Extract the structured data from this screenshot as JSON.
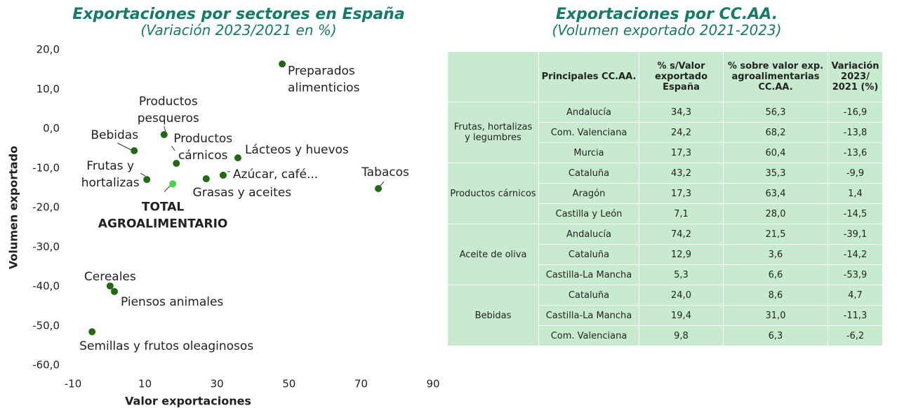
{
  "chart_data": {
    "type": "scatter",
    "title": "Exportaciones por sectores en España",
    "subtitle": "(Variación 2023/2021 en %)",
    "x_label": "Valor exportaciones",
    "y_label": "Volumen exportado",
    "labels": [
      [
        "Preparados",
        "alimenticios"
      ],
      [
        "Productos",
        "pesqueros"
      ],
      [
        "Bebidas"
      ],
      [
        "Productos",
        "cárnicos"
      ],
      [
        "Lácteos y huevos"
      ],
      [
        "Frutas y",
        "hortalizas"
      ],
      [
        "TOTAL",
        "AGROALIMENTARIO"
      ],
      [
        "Grasas y aceites"
      ],
      [
        "Azúcar, café..."
      ],
      [
        "Tabacos"
      ],
      [
        "Cereales"
      ],
      [
        "Piensos animales"
      ],
      [
        "Semillas y frutos oleaginosos"
      ]
    ],
    "x": [
      48.1,
      15.3,
      7.0,
      18.7,
      35.8,
      10.5,
      17.7,
      27.0,
      31.7,
      74.8,
      0.3,
      1.5,
      -4.7
    ],
    "values": [
      16.4,
      -1.5,
      -5.6,
      -8.8,
      -7.4,
      -12.9,
      -14.0,
      -12.7,
      -11.8,
      -15.2,
      -39.9,
      -41.3,
      -51.5
    ],
    "colors": [
      "#1e6b10",
      "#1e6b10",
      "#1e6b10",
      "#1e6b10",
      "#1e6b10",
      "#1e6b10",
      "#3fd63f",
      "#1e6b10",
      "#1e6b10",
      "#1e6b10",
      "#1e6b10",
      "#1e6b10",
      "#1e6b10"
    ],
    "xlim": [
      -10,
      90
    ],
    "xticks": [
      -10,
      10,
      30,
      50,
      70,
      90
    ],
    "ylim": [
      -60,
      20
    ],
    "yticks": [
      {
        "value": -60,
        "label": "-60,0"
      },
      {
        "value": -50,
        "label": "-50,0"
      },
      {
        "value": -40,
        "label": "-40,0"
      },
      {
        "value": -30,
        "label": "-30,0"
      },
      {
        "value": -20,
        "label": "-20,0"
      },
      {
        "value": -10,
        "label": "-10,0"
      },
      {
        "value": 0,
        "label": "0,0"
      },
      {
        "value": 10,
        "label": "10,0"
      },
      {
        "value": 20,
        "label": "20,0"
      }
    ],
    "grid": false
  },
  "table": {
    "title": "Exportaciones por CC.AA.",
    "subtitle": "(Volumen exportado 2021-2023)",
    "headers": [
      "Principales CC.AA.",
      "% s/Valor exportado España",
      "% sobre valor exp. agroalimentarias CC.AA.",
      "Variación 2023/ 2021 (%)"
    ],
    "groups": [
      {
        "name": "Frutas, hortalizas y legumbres",
        "rows": [
          [
            "Andalucía",
            "34,3",
            "56,3",
            "-16,9"
          ],
          [
            "Com. Valenciana",
            "24,2",
            "68,2",
            "-13,8"
          ],
          [
            "Murcia",
            "17,3",
            "60,4",
            "-13,6"
          ]
        ]
      },
      {
        "name": "Productos cárnicos",
        "rows": [
          [
            "Cataluña",
            "43,2",
            "35,3",
            "-9,9"
          ],
          [
            "Aragón",
            "17,3",
            "63,4",
            "1,4"
          ],
          [
            "Castilla y León",
            "7,1",
            "28,0",
            "-14,5"
          ]
        ]
      },
      {
        "name": "Aceite de oliva",
        "rows": [
          [
            "Andalucía",
            "74,2",
            "21,5",
            "-39,1"
          ],
          [
            "Cataluña",
            "12,9",
            "3,6",
            "-14,2"
          ],
          [
            "Castilla-La Mancha",
            "5,3",
            "6,6",
            "-53,9"
          ]
        ]
      },
      {
        "name": "Bebidas",
        "rows": [
          [
            "Cataluña",
            "24,0",
            "8,6",
            "4,7"
          ],
          [
            "Castilla-La Mancha",
            "19,4",
            "31,0",
            "-11,3"
          ],
          [
            "Com. Valenciana",
            "9,8",
            "6,3",
            "-6,2"
          ]
        ]
      }
    ]
  }
}
